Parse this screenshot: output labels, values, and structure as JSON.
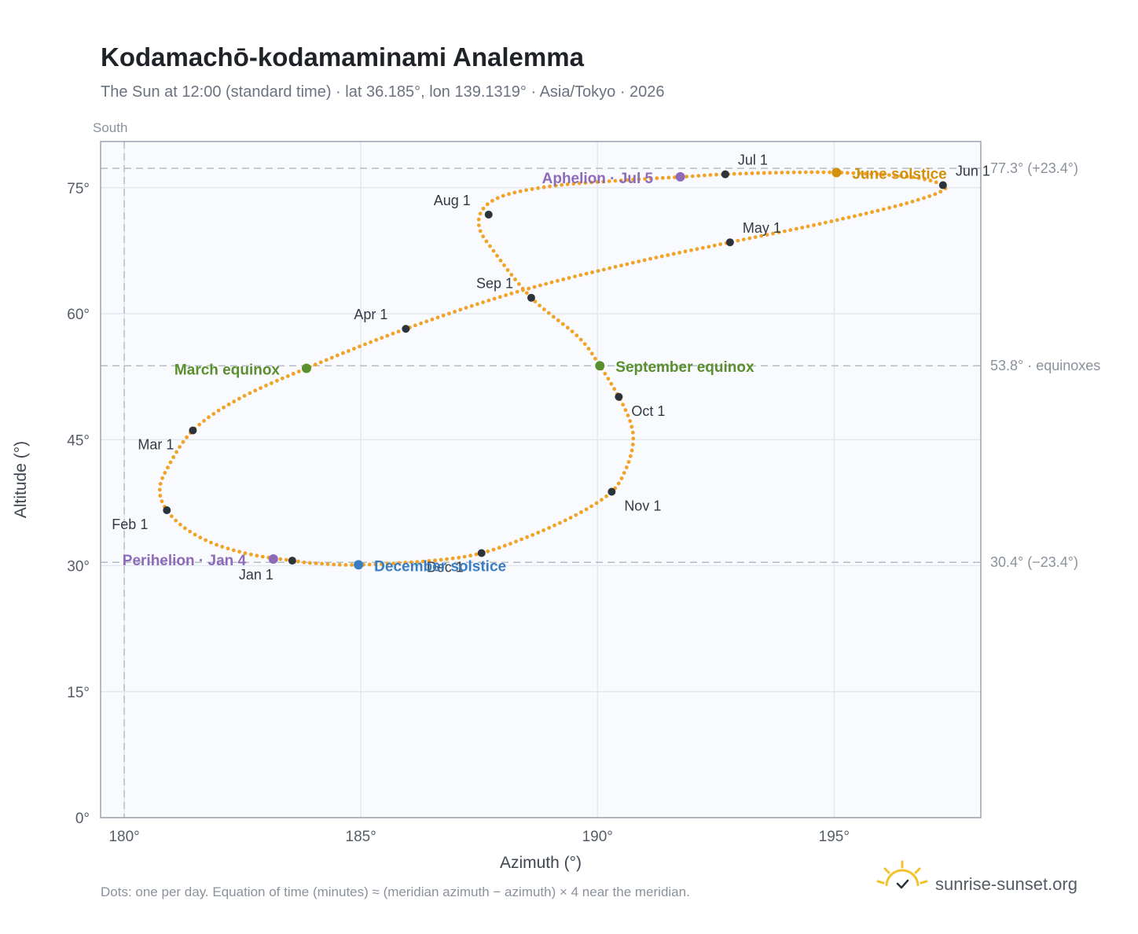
{
  "title": "Kodamachō-kodamaminami Analemma",
  "subtitle": "The Sun at 12:00 (standard time) · lat 36.185°, lon 139.1319° · Asia/Tokyo · 2026",
  "south_label": "South",
  "footnote": "Dots: one per day. Equation of time (minutes) ≈ (meridian azimuth − azimuth) × 4 near the meridian.",
  "brand": "sunrise-sunset.org",
  "colors": {
    "curve": "#f0a326",
    "month": "#2d333b",
    "equinox": "#5a8f2e",
    "june_solstice": "#d4900a",
    "december_solstice": "#3a7dc0",
    "apsis": "#8e6bb8",
    "plot_bg": "#f8fafd",
    "grid": "#e3e8ef",
    "frame": "#9aa3ae",
    "refline": "#b4bcc6"
  },
  "chart_data": {
    "type": "scatter",
    "xlabel": "Azimuth (°)",
    "ylabel": "Altitude (°)",
    "xlim": [
      179.5,
      198.1
    ],
    "ylim": [
      0,
      80.5
    ],
    "xticks": [
      {
        "v": 180,
        "label": "180°"
      },
      {
        "v": 185,
        "label": "185°"
      },
      {
        "v": 190,
        "label": "190°"
      },
      {
        "v": 195,
        "label": "195°"
      }
    ],
    "yticks": [
      {
        "v": 0,
        "label": "0°"
      },
      {
        "v": 15,
        "label": "15°"
      },
      {
        "v": 30,
        "label": "30°"
      },
      {
        "v": 45,
        "label": "45°"
      },
      {
        "v": 60,
        "label": "60°"
      },
      {
        "v": 75,
        "label": "75°"
      }
    ],
    "grid": true,
    "south_azimuth": 180,
    "reference_lines": [
      {
        "y": 77.3,
        "label": "77.3° (+23.4°)"
      },
      {
        "y": 53.8,
        "label": "53.8° · equinoxes"
      },
      {
        "y": 30.4,
        "label": "30.4° (−23.4°)"
      }
    ],
    "analemma_path": [
      {
        "x": 183.55,
        "y": 30.6
      },
      {
        "x": 182.7,
        "y": 31.3
      },
      {
        "x": 181.9,
        "y": 32.6
      },
      {
        "x": 181.3,
        "y": 34.4
      },
      {
        "x": 180.9,
        "y": 36.6
      },
      {
        "x": 180.75,
        "y": 38.9
      },
      {
        "x": 180.9,
        "y": 41.5
      },
      {
        "x": 181.45,
        "y": 46.1
      },
      {
        "x": 182.4,
        "y": 49.8
      },
      {
        "x": 183.85,
        "y": 53.5
      },
      {
        "x": 185.95,
        "y": 58.2
      },
      {
        "x": 188.3,
        "y": 62.6
      },
      {
        "x": 190.7,
        "y": 66.0
      },
      {
        "x": 192.8,
        "y": 68.5
      },
      {
        "x": 194.7,
        "y": 70.7
      },
      {
        "x": 196.3,
        "y": 72.8
      },
      {
        "x": 197.2,
        "y": 74.4
      },
      {
        "x": 197.3,
        "y": 75.3
      },
      {
        "x": 196.6,
        "y": 76.3
      },
      {
        "x": 195.1,
        "y": 76.8
      },
      {
        "x": 193.9,
        "y": 76.8
      },
      {
        "x": 192.7,
        "y": 76.6
      },
      {
        "x": 191.8,
        "y": 76.3
      },
      {
        "x": 190.6,
        "y": 75.9
      },
      {
        "x": 189.2,
        "y": 75.3
      },
      {
        "x": 188.1,
        "y": 74.2
      },
      {
        "x": 187.6,
        "y": 72.6
      },
      {
        "x": 187.5,
        "y": 70.3
      },
      {
        "x": 187.8,
        "y": 67.5
      },
      {
        "x": 188.6,
        "y": 61.9
      },
      {
        "x": 189.6,
        "y": 57.2
      },
      {
        "x": 190.05,
        "y": 53.8
      },
      {
        "x": 190.45,
        "y": 50.1
      },
      {
        "x": 190.7,
        "y": 47.0
      },
      {
        "x": 190.75,
        "y": 44.5
      },
      {
        "x": 190.6,
        "y": 41.5
      },
      {
        "x": 190.3,
        "y": 38.8
      },
      {
        "x": 189.6,
        "y": 36.2
      },
      {
        "x": 188.6,
        "y": 33.6
      },
      {
        "x": 187.55,
        "y": 31.5
      },
      {
        "x": 186.5,
        "y": 30.6
      },
      {
        "x": 184.95,
        "y": 30.1
      },
      {
        "x": 184.0,
        "y": 30.3
      },
      {
        "x": 183.55,
        "y": 30.6
      }
    ],
    "month_markers": [
      {
        "label": "Jan 1",
        "x": 183.55,
        "y": 30.6,
        "dx": -68,
        "dy": 24
      },
      {
        "label": "Feb 1",
        "x": 180.9,
        "y": 36.6,
        "dx": -70,
        "dy": 24
      },
      {
        "label": "Mar 1",
        "x": 181.45,
        "y": 46.1,
        "dx": -70,
        "dy": 24
      },
      {
        "label": "Apr 1",
        "x": 185.95,
        "y": 58.2,
        "dx": -66,
        "dy": -12
      },
      {
        "label": "May 1",
        "x": 192.8,
        "y": 68.5,
        "dx": 16,
        "dy": -12
      },
      {
        "label": "Jun 1",
        "x": 197.3,
        "y": 75.3,
        "dx": 16,
        "dy": -12
      },
      {
        "label": "Jul 1",
        "x": 192.7,
        "y": 76.6,
        "dx": 16,
        "dy": -12
      },
      {
        "label": "Aug 1",
        "x": 187.7,
        "y": 71.8,
        "dx": -70,
        "dy": -12
      },
      {
        "label": "Sep 1",
        "x": 188.6,
        "y": 61.9,
        "dx": -70,
        "dy": -12
      },
      {
        "label": "Oct 1",
        "x": 190.45,
        "y": 50.1,
        "dx": 16,
        "dy": 24
      },
      {
        "label": "Nov 1",
        "x": 190.3,
        "y": 38.8,
        "dx": 16,
        "dy": 24
      },
      {
        "label": "Dec 1",
        "x": 187.55,
        "y": 31.5,
        "dx": -70,
        "dy": 24
      }
    ],
    "event_markers": [
      {
        "label": "March equinox",
        "kind": "equinox",
        "x": 183.85,
        "y": 53.5,
        "dx": -168,
        "dy": 8
      },
      {
        "label": "June solstice",
        "kind": "june_solstice",
        "x": 195.05,
        "y": 76.8,
        "dx": 20,
        "dy": 8
      },
      {
        "label": "September equinox",
        "kind": "equinox",
        "x": 190.05,
        "y": 53.8,
        "dx": 20,
        "dy": 8
      },
      {
        "label": "December solstice",
        "kind": "december_solstice",
        "x": 184.95,
        "y": 30.1,
        "dx": 20,
        "dy": 8
      },
      {
        "label": "Perihelion · Jan 4",
        "kind": "apsis",
        "x": 183.15,
        "y": 30.8,
        "dx": -192,
        "dy": 8
      },
      {
        "label": "Aphelion · Jul 5",
        "kind": "apsis",
        "x": 191.75,
        "y": 76.3,
        "dx": -176,
        "dy": 8
      }
    ]
  }
}
